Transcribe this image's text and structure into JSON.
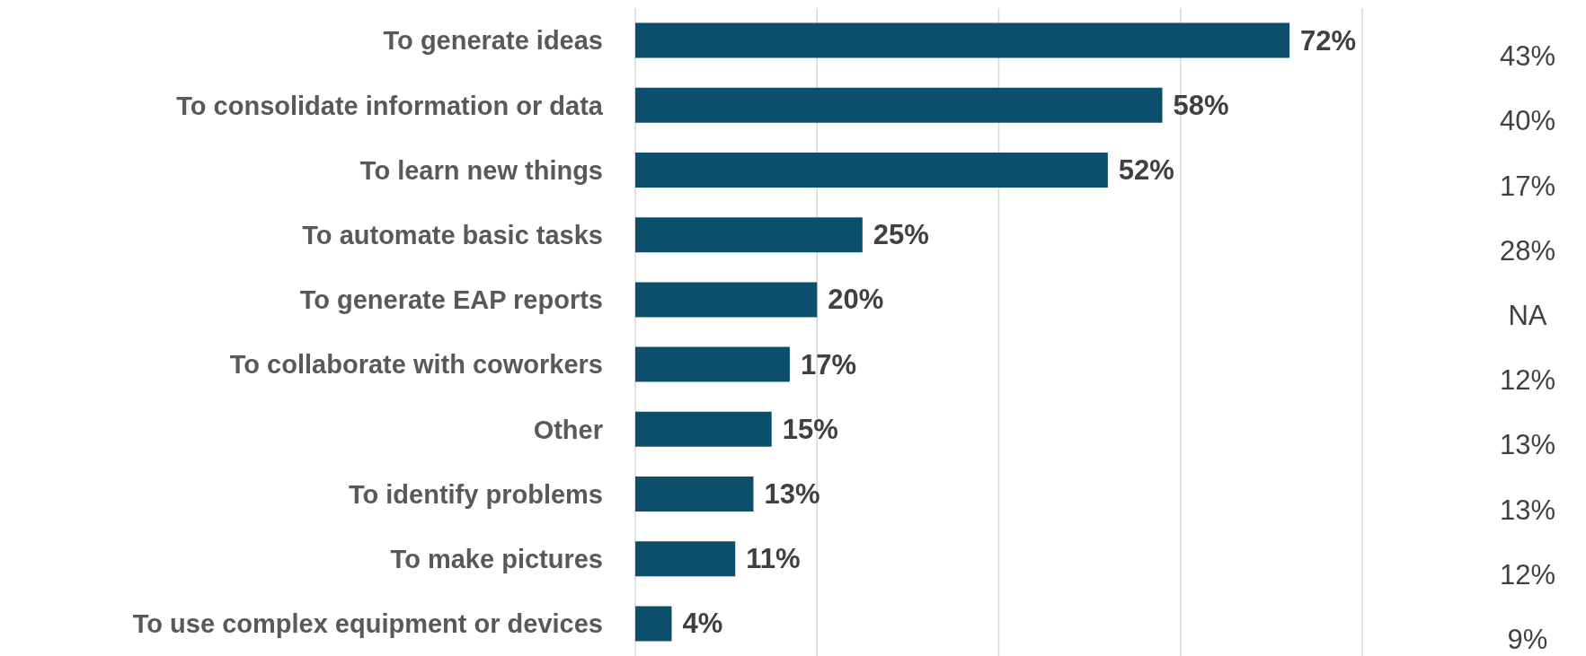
{
  "chart_data": {
    "type": "bar",
    "orientation": "horizontal",
    "categories": [
      "To generate ideas",
      "To consolidate information or data",
      "To learn new things",
      "To automate basic tasks",
      "To generate EAP reports",
      "To collaborate with coworkers",
      "Other",
      "To identify problems",
      "To make pictures",
      "To use complex equipment or devices"
    ],
    "values": [
      72,
      58,
      52,
      25,
      20,
      17,
      15,
      13,
      11,
      4
    ],
    "value_labels": [
      "72%",
      "58%",
      "52%",
      "25%",
      "20%",
      "17%",
      "15%",
      "13%",
      "11%",
      "4%"
    ],
    "color": "#0b4f6c",
    "grid": "x",
    "tick_labels": "y",
    "annotations": [
      "43%",
      "40%",
      "17%",
      "28%",
      "NA",
      "12%",
      "13%",
      "13%",
      "12%",
      "9%"
    ]
  }
}
